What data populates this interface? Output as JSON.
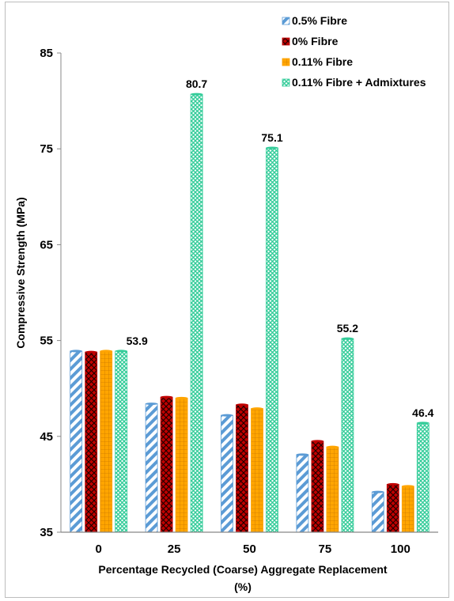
{
  "chart_data": {
    "type": "bar",
    "categories": [
      "0",
      "25",
      "50",
      "75",
      "100"
    ],
    "series": [
      {
        "name": "0.5% Fibre",
        "values": [
          53.9,
          48.4,
          47.2,
          43.1,
          39.2
        ],
        "color": "#5b9bd5",
        "pattern": "diagonal-stripes"
      },
      {
        "name": "0% Fibre",
        "values": [
          53.8,
          49.1,
          48.3,
          44.5,
          40.0
        ],
        "color": "#c00000",
        "pattern": "diamond-lattice"
      },
      {
        "name": "0.11% Fibre",
        "values": [
          53.9,
          49.0,
          47.9,
          43.9,
          39.8
        ],
        "color": "#ffa500",
        "pattern": "grid"
      },
      {
        "name": "0.11% Fibre + Admixtures",
        "values": [
          53.9,
          80.7,
          75.1,
          55.2,
          46.4
        ],
        "color": "#33cc99",
        "pattern": "crosshatch"
      }
    ],
    "data_labels": {
      "series": "0.11% Fibre + Admixtures",
      "labels": [
        "53.9",
        "80.7",
        "75.1",
        "55.2",
        "46.4"
      ]
    },
    "ylim": [
      35,
      85
    ],
    "yticks": [
      "35",
      "45",
      "55",
      "65",
      "75",
      "85"
    ],
    "ylabel": "Compressive  Strength (MPa)",
    "xlabel_line1": "Percentage Recycled (Coarse) Aggregate Replacement",
    "xlabel_line2": "(%)",
    "legend_position": "top-right",
    "grid": false
  }
}
